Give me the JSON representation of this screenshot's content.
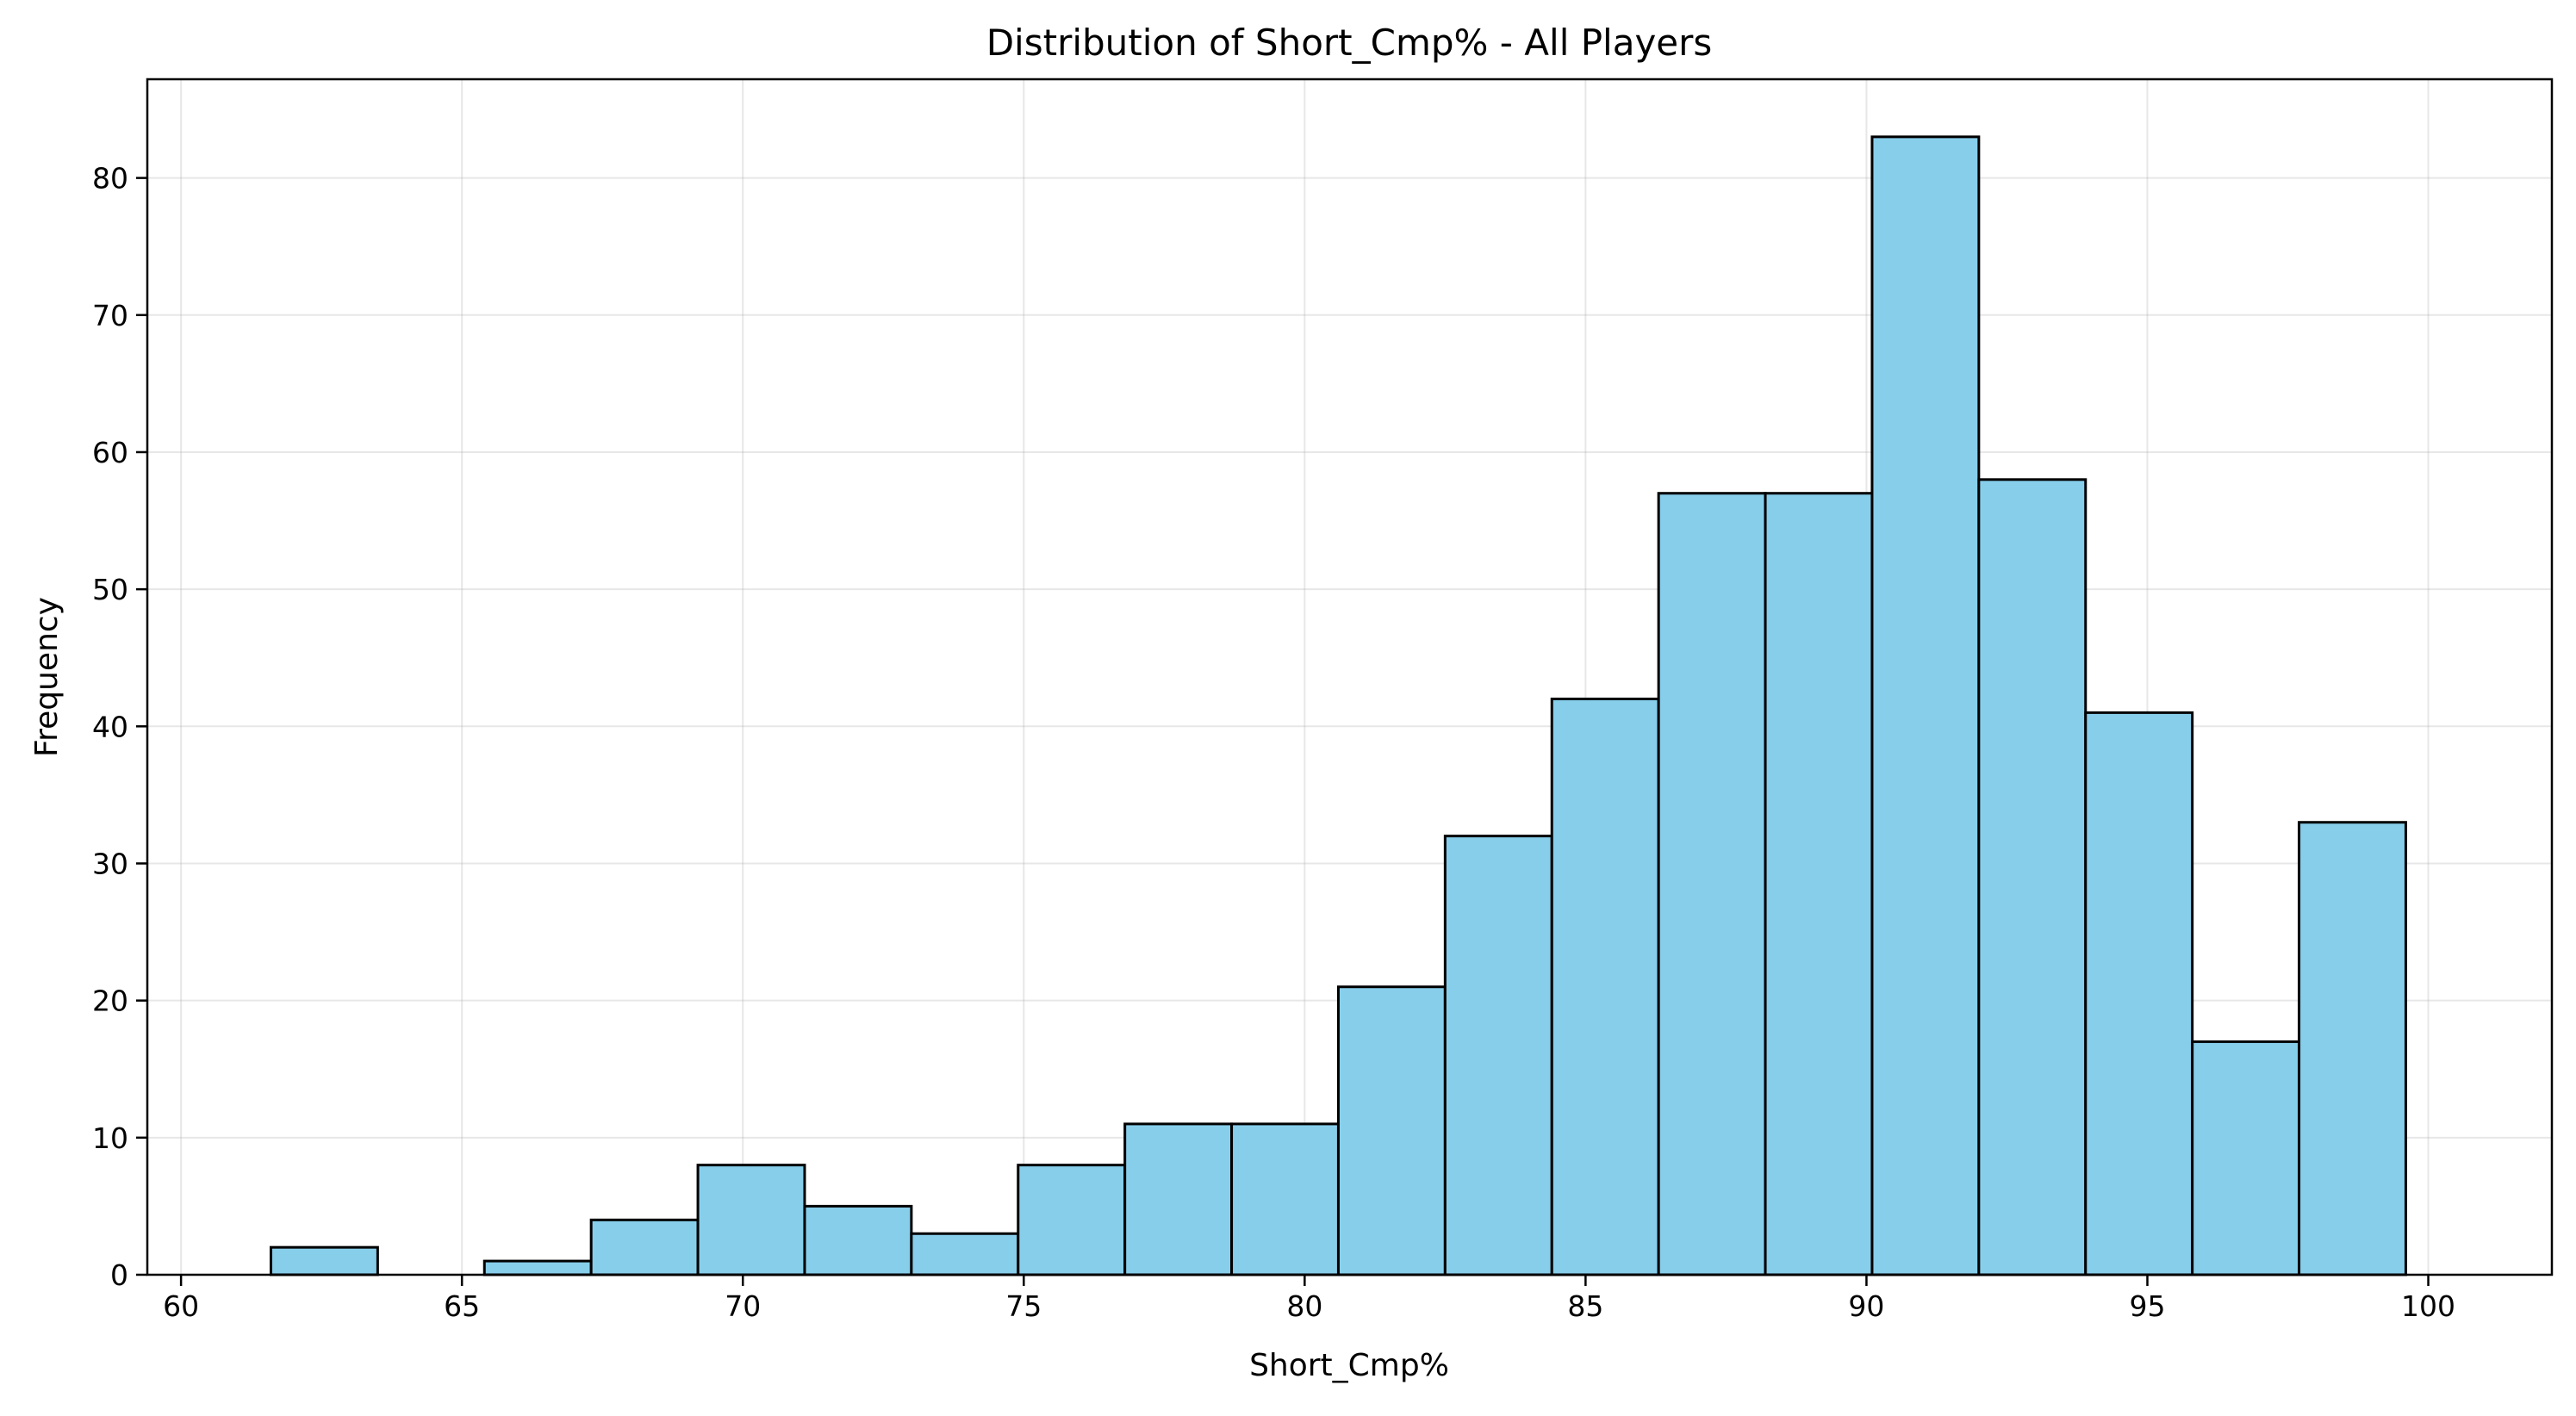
{
  "chart_data": {
    "type": "bar",
    "title": "Distribution of Short_Cmp% - All Players",
    "xlabel": "Short_Cmp%",
    "ylabel": "Frequency",
    "xlim": [
      59.4,
      102.2
    ],
    "ylim": [
      0,
      87.2
    ],
    "grid": true,
    "bar_color": "#87ceeb",
    "edge_color": "#000000",
    "bin_edges": [
      61.6,
      63.5,
      65.4,
      67.3,
      69.2,
      71.1,
      73.0,
      74.9,
      76.8,
      78.7,
      80.6,
      82.5,
      84.4,
      86.3,
      88.2,
      90.1,
      92.0,
      93.9,
      95.8,
      97.7,
      99.6
    ],
    "values": [
      2,
      0,
      1,
      4,
      8,
      5,
      3,
      8,
      11,
      11,
      21,
      32,
      42,
      57,
      57,
      83,
      58,
      41,
      17,
      33
    ],
    "x_ticks": [
      "60",
      "65",
      "70",
      "75",
      "80",
      "85",
      "90",
      "95",
      "100"
    ],
    "y_ticks": [
      "0",
      "10",
      "20",
      "30",
      "40",
      "50",
      "60",
      "70",
      "80"
    ]
  }
}
